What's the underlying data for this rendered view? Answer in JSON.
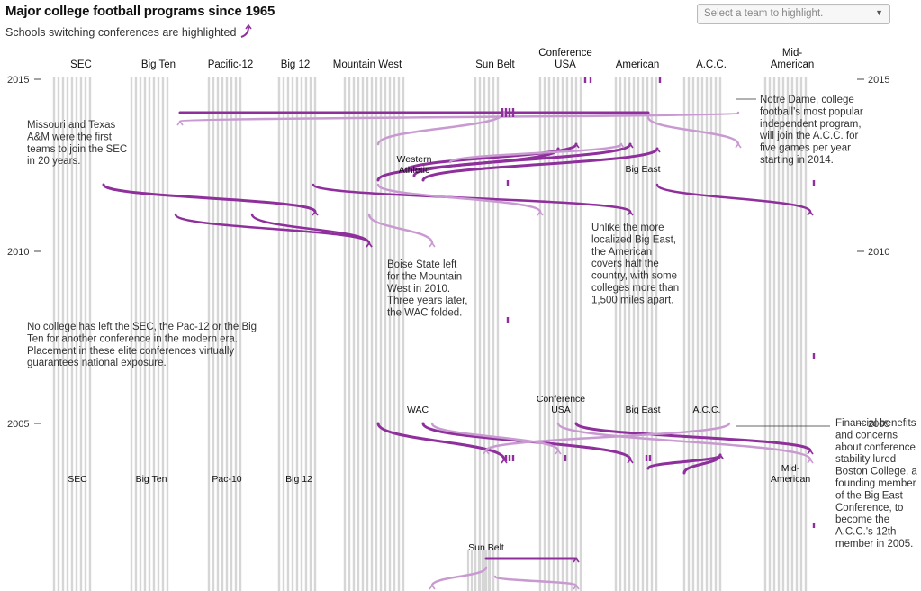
{
  "header": {
    "title": "Major college football programs since 1965",
    "subtitle": "Schools switching conferences are highlighted"
  },
  "search": {
    "placeholder": "Select a team to highlight."
  },
  "colors": {
    "accent": "#8e2f9c",
    "accent_light": "#c99ad1",
    "lane": "#d6d6d6",
    "background": "#ffffff"
  },
  "chart_data": {
    "type": "flow",
    "years_shown": [
      2015,
      2010,
      2005
    ],
    "top_conferences": [
      "SEC",
      "Big Ten",
      "Pacific-12",
      "Big 12",
      "Mountain West",
      "Sun Belt",
      "Conference USA",
      "American",
      "A.C.C.",
      "Mid-American"
    ],
    "mid_labels_2013": [
      "Western Athletic",
      "Big East"
    ],
    "mid_labels_2005": [
      "WAC",
      "Conference USA",
      "Big East",
      "A.C.C."
    ],
    "era_labels_2003": [
      "SEC",
      "Big Ten",
      "Pac-10",
      "Big 12",
      "Mid-American"
    ],
    "lower_labels": [
      "Sun Belt"
    ],
    "annotations": [
      "Missouri and Texas A&M were the first teams to join the SEC in 20 years.",
      "Notre Dame, college football's most popular independent program, will join the A.C.C. for five games per year starting in 2014.",
      "Boise State left for the Mountain West in 2010. Three years later, the WAC folded.",
      "Unlike the more localized Big East, the American covers half the country, with some colleges more than 1,500 miles apart.",
      "No college has left the SEC, the Pac-12 or the Big Ten for another conference in the modern era. Placement in these elite conferences virtually guarantees national exposure.",
      "Financial benefits and concerns about conference stability lured Boston College, a founding member of the Big East Conference, to become the A.C.C.'s 12th member in 2005."
    ]
  }
}
